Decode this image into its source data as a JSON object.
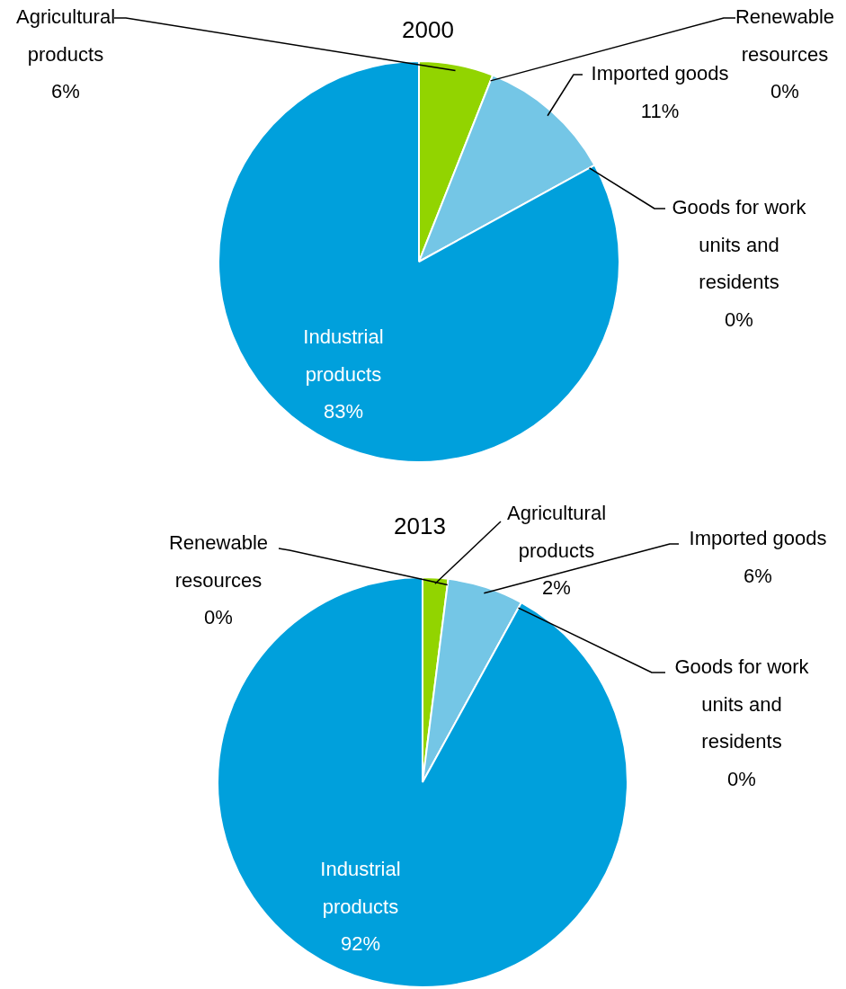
{
  "chart_data": [
    {
      "type": "pie",
      "title": "2000",
      "categories": [
        "Agricultural products",
        "Renewable resources",
        "Imported goods",
        "Goods for work units and residents",
        "Industrial products"
      ],
      "values": [
        6,
        0,
        11,
        0,
        83
      ],
      "value_labels": [
        "6%",
        "0%",
        "11%",
        "0%",
        "83%"
      ],
      "colors": [
        "#92d400",
        "#3a7d22",
        "#74c6e6",
        "#4a8fb5",
        "#00a0dc"
      ],
      "legend": false
    },
    {
      "type": "pie",
      "title": "2013",
      "categories": [
        "Agricultural products",
        "Renewable resources",
        "Imported goods",
        "Goods for work units and residents",
        "Industrial products"
      ],
      "values": [
        2,
        0,
        6,
        0,
        92
      ],
      "value_labels": [
        "2%",
        "0%",
        "6%",
        "0%",
        "92%"
      ],
      "colors": [
        "#92d400",
        "#3a7d22",
        "#74c6e6",
        "#4a8fb5",
        "#00a0dc"
      ],
      "legend": false
    }
  ]
}
